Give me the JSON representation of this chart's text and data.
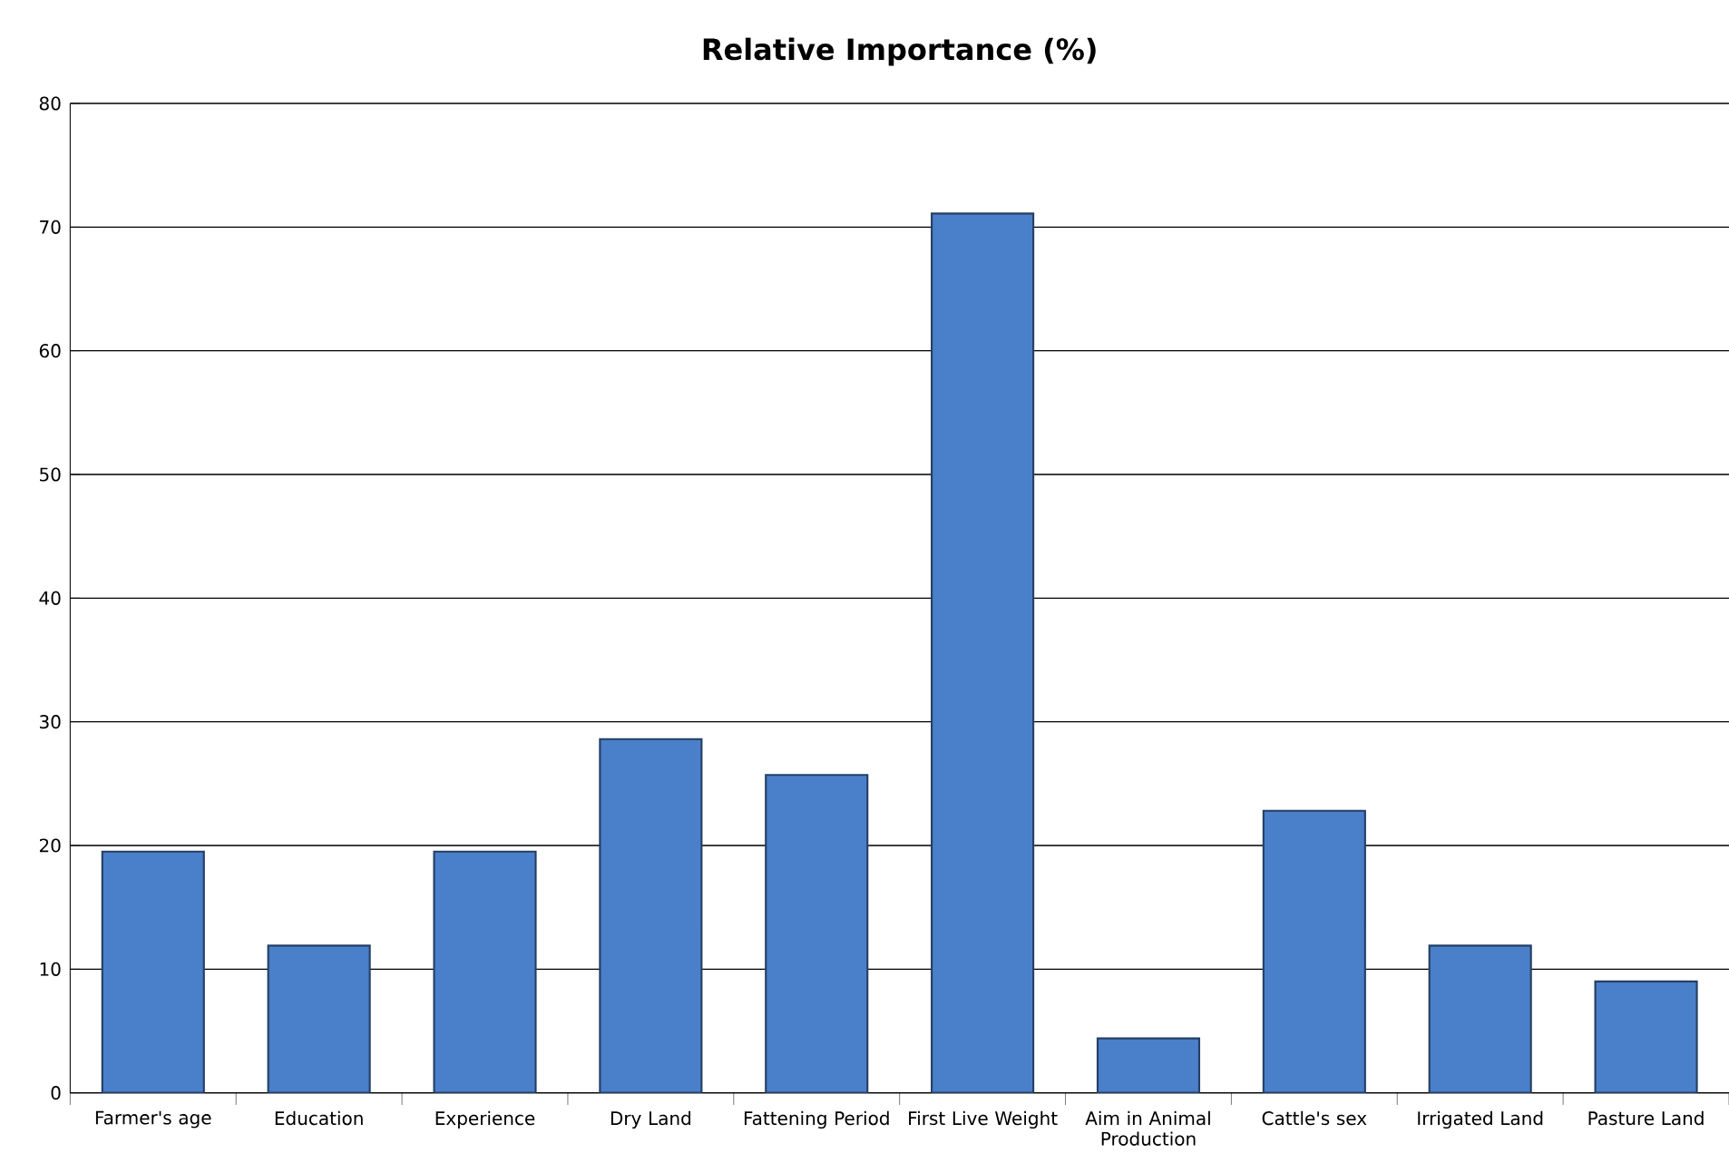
{
  "chart_data": {
    "type": "bar",
    "title": "Relative Importance (%)",
    "categories": [
      "Farmer's age",
      "Education",
      "Experience",
      "Dry Land",
      "Fattening Period",
      "First Live Weight",
      "Aim in Animal Production",
      "Cattle's sex",
      "Irrigated Land",
      "Pasture Land"
    ],
    "values": [
      19.5,
      11.9,
      19.5,
      28.6,
      25.7,
      71.1,
      4.4,
      22.8,
      11.9,
      9.0
    ],
    "color": "#4a7fc9",
    "ylim": [
      0,
      80
    ],
    "yticks": [
      0,
      10,
      20,
      30,
      40,
      50,
      60,
      70,
      80
    ],
    "grid": "y"
  }
}
